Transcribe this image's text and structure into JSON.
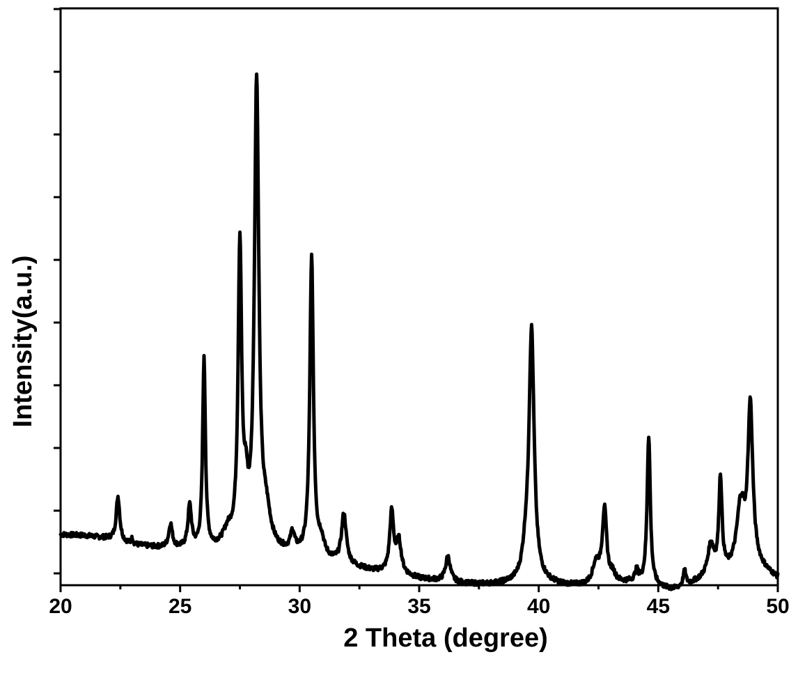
{
  "chart_data": {
    "type": "line",
    "xlabel": "2 Theta (degree)",
    "ylabel": "Intensity(a.u.)",
    "xlim": [
      20,
      50
    ],
    "ylim": [
      0,
      100
    ],
    "xticks": [
      20,
      25,
      30,
      35,
      40,
      45,
      50
    ],
    "x_tick_labels": [
      "20",
      "25",
      "30",
      "35",
      "40",
      "45",
      "50"
    ],
    "y_tick_labels_shown": false,
    "grid": false,
    "legend": "none",
    "line_color": "#000000",
    "baseline": [
      [
        20,
        11
      ],
      [
        21,
        10.8
      ],
      [
        22,
        10.2
      ],
      [
        23,
        9
      ],
      [
        24,
        8.5
      ],
      [
        25,
        8.2
      ],
      [
        26,
        8
      ],
      [
        27,
        7.8
      ],
      [
        28,
        7.6
      ],
      [
        29,
        7.3
      ],
      [
        30,
        7
      ],
      [
        31,
        6
      ],
      [
        32,
        5
      ],
      [
        33,
        4
      ],
      [
        34,
        3.5
      ],
      [
        35,
        2.5
      ],
      [
        36,
        2
      ],
      [
        37,
        1.5
      ],
      [
        38,
        1.4
      ],
      [
        39,
        1.6
      ],
      [
        40,
        1.8
      ],
      [
        41,
        1.2
      ],
      [
        42,
        1.0
      ],
      [
        43,
        1.5
      ],
      [
        44,
        1.8
      ],
      [
        45,
        0.8
      ],
      [
        45.6,
        0.3
      ],
      [
        46,
        0.8
      ],
      [
        47,
        2.5
      ],
      [
        48,
        3.5
      ],
      [
        49,
        5
      ],
      [
        50,
        2.5
      ]
    ],
    "peaks": [
      {
        "x": 22.4,
        "height": 8.5,
        "width": 0.09
      },
      {
        "x": 23.0,
        "height": 1.2,
        "width": 0.04
      },
      {
        "x": 24.6,
        "height": 4.5,
        "width": 0.09
      },
      {
        "x": 25.4,
        "height": 8.0,
        "width": 0.09
      },
      {
        "x": 26.0,
        "height": 36,
        "width": 0.07
      },
      {
        "x": 27.0,
        "height": 3,
        "width": 0.25
      },
      {
        "x": 27.5,
        "height": 57,
        "width": 0.09
      },
      {
        "x": 27.75,
        "height": 8,
        "width": 0.1
      },
      {
        "x": 28.2,
        "height": 89,
        "width": 0.11
      },
      {
        "x": 28.6,
        "height": 6,
        "width": 0.22
      },
      {
        "x": 29.7,
        "height": 3.5,
        "width": 0.1
      },
      {
        "x": 30.5,
        "height": 57,
        "width": 0.09
      },
      {
        "x": 30.9,
        "height": 3,
        "width": 0.15
      },
      {
        "x": 31.85,
        "height": 9.5,
        "width": 0.12
      },
      {
        "x": 33.85,
        "height": 11.5,
        "width": 0.1
      },
      {
        "x": 34.15,
        "height": 6,
        "width": 0.12
      },
      {
        "x": 36.2,
        "height": 4.8,
        "width": 0.12
      },
      {
        "x": 39.7,
        "height": 48,
        "width": 0.13
      },
      {
        "x": 39.45,
        "height": 4,
        "width": 0.15
      },
      {
        "x": 42.75,
        "height": 14,
        "width": 0.11
      },
      {
        "x": 42.4,
        "height": 4,
        "width": 0.18
      },
      {
        "x": 43.1,
        "height": 1.5,
        "width": 0.12
      },
      {
        "x": 44.1,
        "height": 2,
        "width": 0.08
      },
      {
        "x": 44.6,
        "height": 28.5,
        "width": 0.08
      },
      {
        "x": 46.1,
        "height": 2.8,
        "width": 0.07
      },
      {
        "x": 47.2,
        "height": 6,
        "width": 0.15
      },
      {
        "x": 47.6,
        "height": 18,
        "width": 0.08
      },
      {
        "x": 48.45,
        "height": 12,
        "width": 0.2
      },
      {
        "x": 48.85,
        "height": 30,
        "width": 0.12
      }
    ]
  }
}
